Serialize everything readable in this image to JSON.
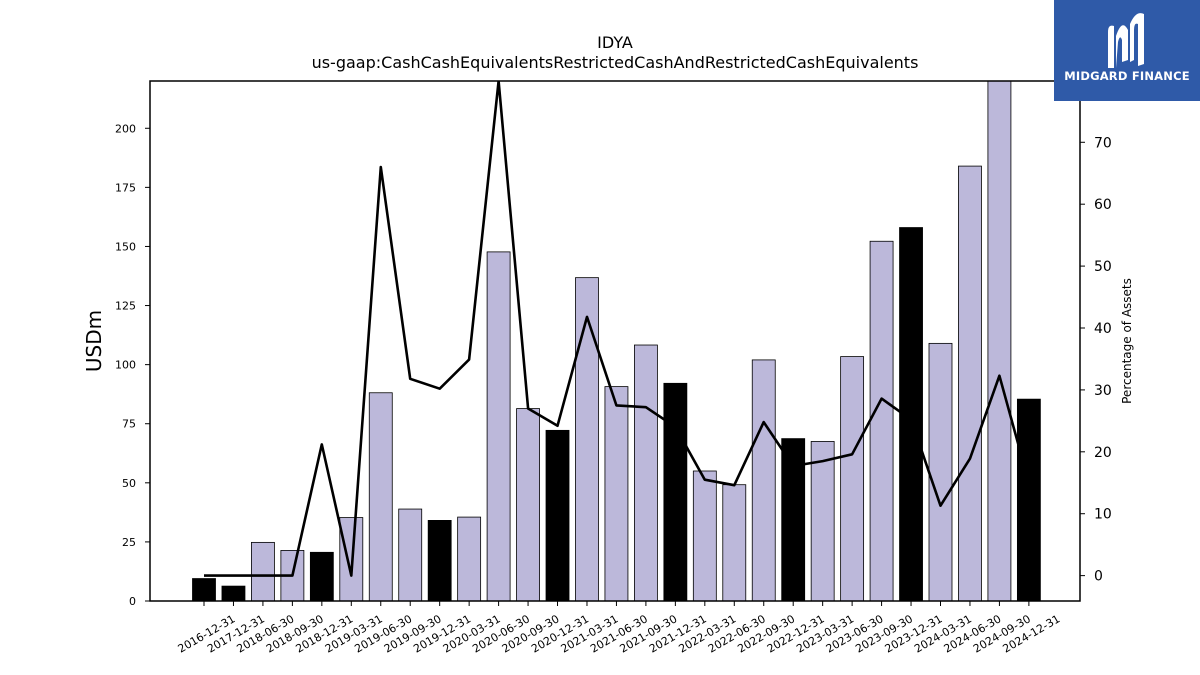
{
  "brand": {
    "name": "MIDGARD FINANCE",
    "bg_color": "#2f5aa8"
  },
  "chart_data": {
    "type": "bar",
    "title": "IDYA",
    "subtitle": "us-gaap:CashCashEquivalentsRestrictedCashAndRestrictedCashEquivalents",
    "ylabel": "USDm",
    "y2label": "Percentage of Assets",
    "ylim": [
      0,
      220
    ],
    "y2lim": [
      -4.1,
      79.9
    ],
    "yticks": [
      0,
      25,
      50,
      75,
      100,
      125,
      150,
      175,
      200
    ],
    "y2ticks": [
      0,
      10,
      20,
      30,
      40,
      50,
      60,
      70
    ],
    "grid": false,
    "categories": [
      "2016-12-31",
      "2017-12-31",
      "2018-06-30",
      "2018-09-30",
      "2018-12-31",
      "2019-03-31",
      "2019-06-30",
      "2019-09-30",
      "2019-12-31",
      "2020-03-31",
      "2020-06-30",
      "2020-09-30",
      "2020-12-31",
      "2021-03-31",
      "2021-06-30",
      "2021-09-30",
      "2021-12-31",
      "2022-03-31",
      "2022-06-30",
      "2022-09-30",
      "2022-12-31",
      "2023-03-31",
      "2023-06-30",
      "2023-09-30",
      "2023-12-31",
      "2024-03-31",
      "2024-06-30",
      "2024-09-30",
      "2024-12-31"
    ],
    "series": [
      {
        "kind": "bar",
        "values": [
          9.5,
          6.3,
          24.8,
          21.4,
          20.6,
          35.3,
          88.1,
          38.9,
          34.1,
          35.5,
          147.7,
          81.4,
          72.2,
          136.8,
          90.7,
          108.3,
          92.1,
          55.0,
          49.2,
          102.0,
          68.7,
          67.5,
          103.4,
          152.2,
          158.0,
          109.0,
          184.0,
          220.0,
          85.4
        ],
        "annual": [
          true,
          true,
          false,
          false,
          true,
          false,
          false,
          false,
          true,
          false,
          false,
          false,
          true,
          false,
          false,
          false,
          true,
          false,
          false,
          false,
          true,
          false,
          false,
          false,
          true,
          false,
          false,
          false,
          true
        ],
        "color_annual": "#000000",
        "color_quarter": "#bcb8da"
      },
      {
        "kind": "line",
        "axis": "y2",
        "color": "#000000",
        "values": [
          0.0,
          0.0,
          0.0,
          0.0,
          21.2,
          0.0,
          66.0,
          31.8,
          30.2,
          34.9,
          79.9,
          27.0,
          24.2,
          41.8,
          27.5,
          27.2,
          24.0,
          15.5,
          14.6,
          24.8,
          17.7,
          18.5,
          19.6,
          28.6,
          25.2,
          11.3,
          18.9,
          32.3,
          15.0
        ]
      }
    ]
  }
}
